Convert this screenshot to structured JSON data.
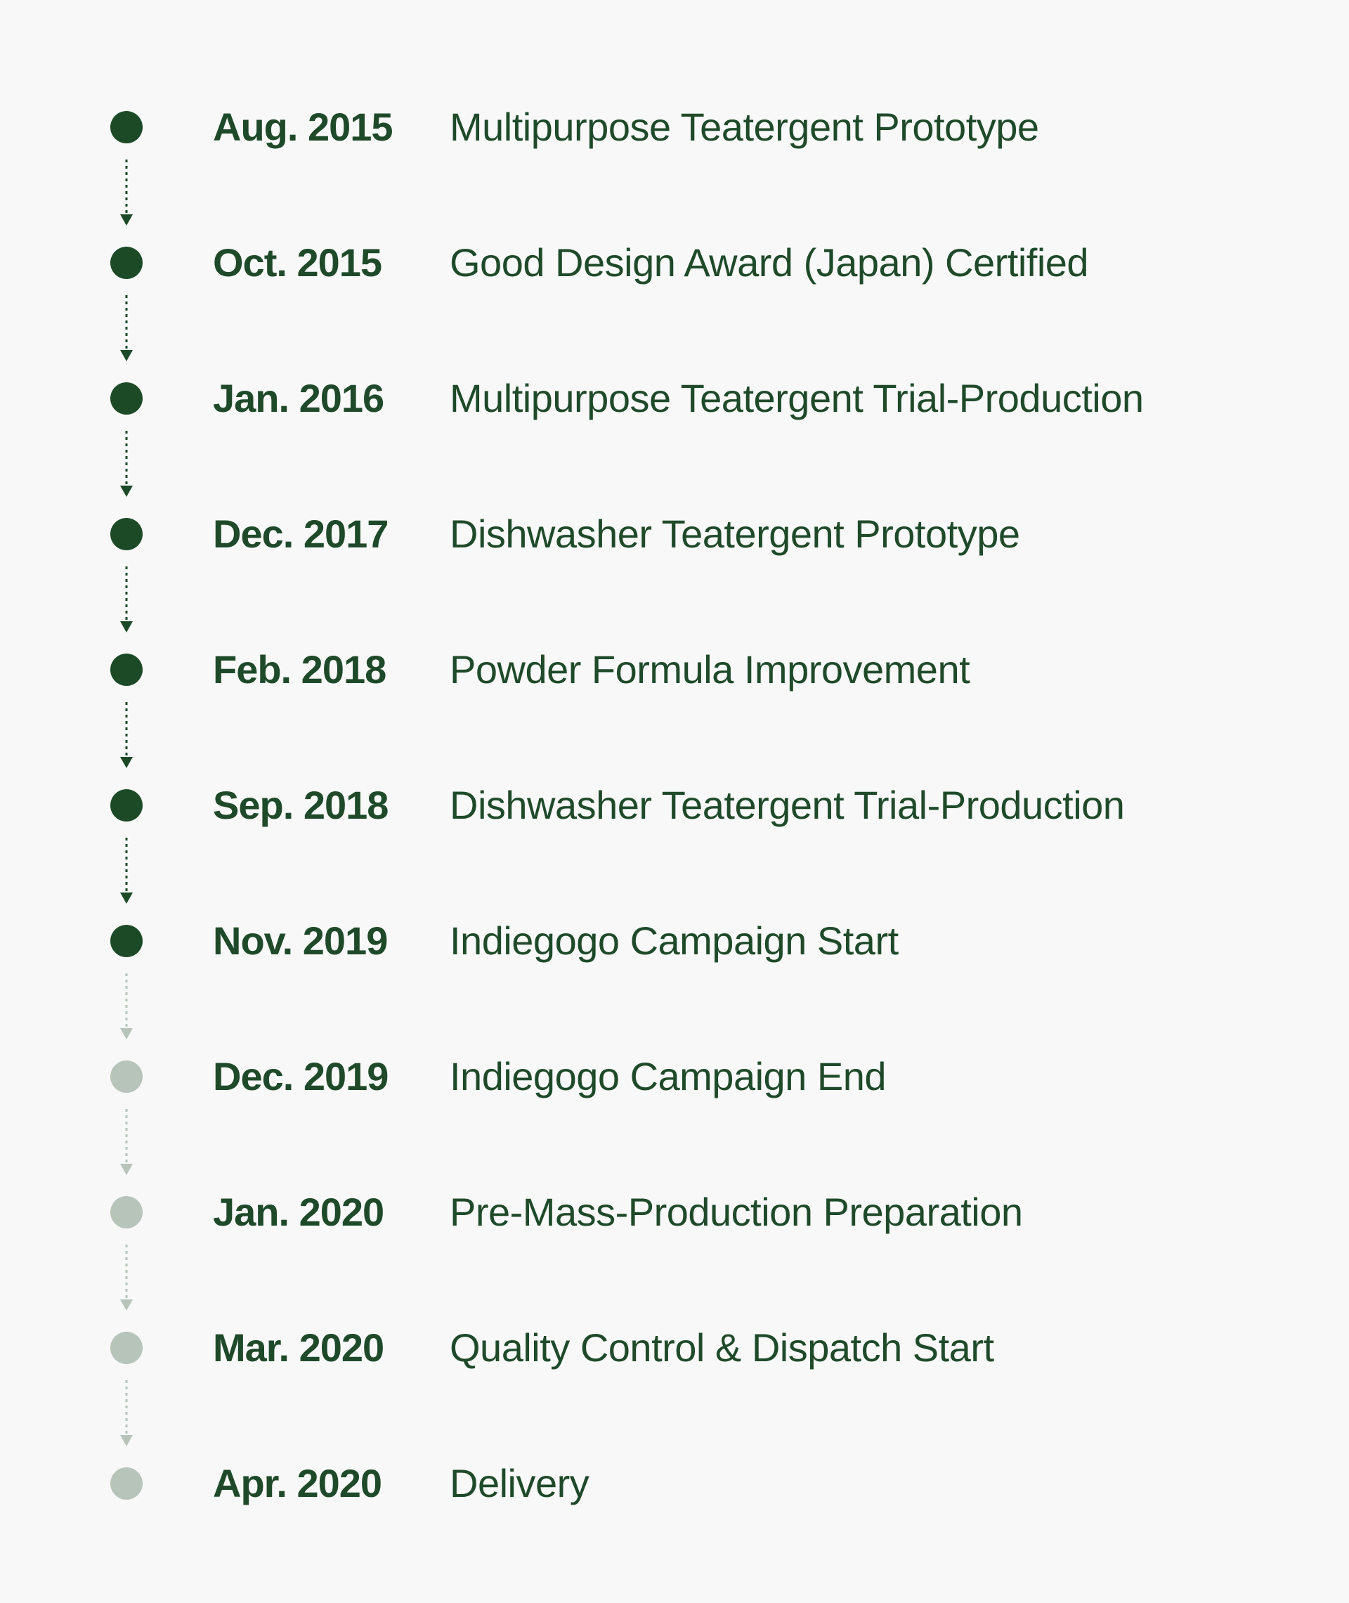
{
  "colors": {
    "text": "#1f4a2a",
    "done": "#1c4a27",
    "upcoming": "#b7c4ba",
    "background": "#f8f8f8"
  },
  "milestones": [
    {
      "date": "Aug. 2015",
      "label": "Multipurpose Teatergent Prototype",
      "status": "done"
    },
    {
      "date": "Oct. 2015",
      "label": "Good Design Award (Japan) Certified",
      "status": "done"
    },
    {
      "date": "Jan. 2016",
      "label": "Multipurpose Teatergent Trial-Production",
      "status": "done"
    },
    {
      "date": "Dec. 2017",
      "label": "Dishwasher Teatergent Prototype",
      "status": "done"
    },
    {
      "date": "Feb. 2018",
      "label": "Powder Formula Improvement",
      "status": "done"
    },
    {
      "date": "Sep. 2018",
      "label": "Dishwasher Teatergent Trial-Production",
      "status": "done"
    },
    {
      "date": "Nov. 2019",
      "label": "Indiegogo Campaign Start",
      "status": "done"
    },
    {
      "date": "Dec. 2019",
      "label": "Indiegogo Campaign End",
      "status": "upcoming"
    },
    {
      "date": "Jan. 2020",
      "label": "Pre-Mass-Production Preparation",
      "status": "upcoming"
    },
    {
      "date": "Mar. 2020",
      "label": "Quality Control & Dispatch Start",
      "status": "upcoming"
    },
    {
      "date": "Apr. 2020",
      "label": "Delivery",
      "status": "upcoming"
    }
  ]
}
